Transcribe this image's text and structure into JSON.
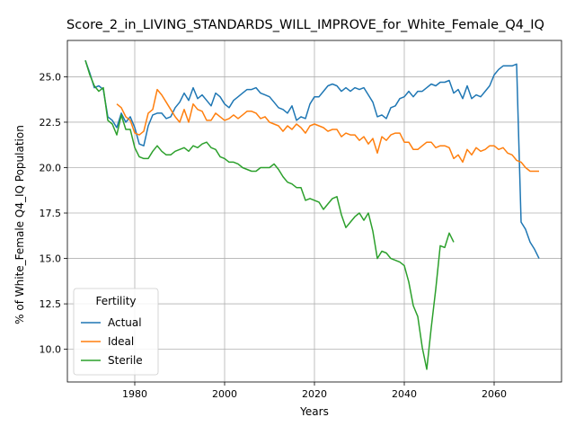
{
  "chart_data": {
    "type": "line",
    "title": "Score_2_in_LIVING_STANDARDS_WILL_IMPROVE_for_White_Female_Q4_IQ",
    "xlabel": "Years",
    "ylabel": "% of White_Female Q4_IQ Population",
    "xlim": [
      1965,
      2075
    ],
    "ylim": [
      8.2,
      27.0
    ],
    "xticks": [
      1980,
      2000,
      2020,
      2040,
      2060
    ],
    "yticks": [
      10.0,
      12.5,
      15.0,
      17.5,
      20.0,
      22.5,
      25.0
    ],
    "xtick_labels": [
      "1980",
      "2000",
      "2020",
      "2040",
      "2060"
    ],
    "ytick_labels": [
      "10.0",
      "12.5",
      "15.0",
      "17.5",
      "20.0",
      "22.5",
      "25.0"
    ],
    "grid": true,
    "legend": {
      "title": "Fertility",
      "position": "lower-left"
    },
    "series": [
      {
        "name": "Actual",
        "color": "#1f77b4",
        "points": [
          [
            1969,
            25.9
          ],
          [
            1970,
            25.2
          ],
          [
            1971,
            24.4
          ],
          [
            1972,
            24.5
          ],
          [
            1973,
            24.3
          ],
          [
            1974,
            22.8
          ],
          [
            1975,
            22.6
          ],
          [
            1976,
            22.2
          ],
          [
            1977,
            23.0
          ],
          [
            1978,
            22.5
          ],
          [
            1979,
            22.8
          ],
          [
            1980,
            22.2
          ],
          [
            1981,
            21.3
          ],
          [
            1982,
            21.2
          ],
          [
            1983,
            22.3
          ],
          [
            1984,
            22.9
          ],
          [
            1985,
            23.0
          ],
          [
            1986,
            23.0
          ],
          [
            1987,
            22.7
          ],
          [
            1988,
            22.8
          ],
          [
            1989,
            23.3
          ],
          [
            1990,
            23.6
          ],
          [
            1991,
            24.1
          ],
          [
            1992,
            23.7
          ],
          [
            1993,
            24.4
          ],
          [
            1994,
            23.8
          ],
          [
            1995,
            24.0
          ],
          [
            1996,
            23.7
          ],
          [
            1997,
            23.4
          ],
          [
            1998,
            24.1
          ],
          [
            1999,
            23.9
          ],
          [
            2000,
            23.5
          ],
          [
            2001,
            23.3
          ],
          [
            2002,
            23.7
          ],
          [
            2003,
            23.9
          ],
          [
            2004,
            24.1
          ],
          [
            2005,
            24.3
          ],
          [
            2006,
            24.3
          ],
          [
            2007,
            24.4
          ],
          [
            2008,
            24.1
          ],
          [
            2009,
            24.0
          ],
          [
            2010,
            23.9
          ],
          [
            2011,
            23.6
          ],
          [
            2012,
            23.3
          ],
          [
            2013,
            23.2
          ],
          [
            2014,
            23.0
          ],
          [
            2015,
            23.4
          ],
          [
            2016,
            22.6
          ],
          [
            2017,
            22.8
          ],
          [
            2018,
            22.7
          ],
          [
            2019,
            23.5
          ],
          [
            2020,
            23.9
          ],
          [
            2021,
            23.9
          ],
          [
            2022,
            24.2
          ],
          [
            2023,
            24.5
          ],
          [
            2024,
            24.6
          ],
          [
            2025,
            24.5
          ],
          [
            2026,
            24.2
          ],
          [
            2027,
            24.4
          ],
          [
            2028,
            24.2
          ],
          [
            2029,
            24.4
          ],
          [
            2030,
            24.3
          ],
          [
            2031,
            24.4
          ],
          [
            2032,
            24.0
          ],
          [
            2033,
            23.6
          ],
          [
            2034,
            22.8
          ],
          [
            2035,
            22.9
          ],
          [
            2036,
            22.7
          ],
          [
            2037,
            23.3
          ],
          [
            2038,
            23.4
          ],
          [
            2039,
            23.8
          ],
          [
            2040,
            23.9
          ],
          [
            2041,
            24.2
          ],
          [
            2042,
            23.9
          ],
          [
            2043,
            24.2
          ],
          [
            2044,
            24.2
          ],
          [
            2045,
            24.4
          ],
          [
            2046,
            24.6
          ],
          [
            2047,
            24.5
          ],
          [
            2048,
            24.7
          ],
          [
            2049,
            24.7
          ],
          [
            2050,
            24.8
          ],
          [
            2051,
            24.1
          ],
          [
            2052,
            24.3
          ],
          [
            2053,
            23.8
          ],
          [
            2054,
            24.5
          ],
          [
            2055,
            23.8
          ],
          [
            2056,
            24.0
          ],
          [
            2057,
            23.9
          ],
          [
            2058,
            24.2
          ],
          [
            2059,
            24.5
          ],
          [
            2060,
            25.1
          ],
          [
            2061,
            25.4
          ],
          [
            2062,
            25.6
          ],
          [
            2063,
            25.6
          ],
          [
            2064,
            25.6
          ],
          [
            2065,
            25.7
          ],
          [
            2066,
            17.0
          ],
          [
            2067,
            16.6
          ],
          [
            2068,
            15.9
          ],
          [
            2069,
            15.5
          ],
          [
            2070,
            15.0
          ]
        ]
      },
      {
        "name": "Ideal",
        "color": "#ff7f0e",
        "points": [
          [
            1976,
            23.5
          ],
          [
            1977,
            23.3
          ],
          [
            1978,
            22.8
          ],
          [
            1979,
            22.6
          ],
          [
            1980,
            21.9
          ],
          [
            1981,
            21.8
          ],
          [
            1982,
            22.0
          ],
          [
            1983,
            23.0
          ],
          [
            1984,
            23.2
          ],
          [
            1985,
            24.3
          ],
          [
            1986,
            24.0
          ],
          [
            1987,
            23.6
          ],
          [
            1988,
            23.2
          ],
          [
            1989,
            22.8
          ],
          [
            1990,
            22.5
          ],
          [
            1991,
            23.2
          ],
          [
            1992,
            22.5
          ],
          [
            1993,
            23.5
          ],
          [
            1994,
            23.2
          ],
          [
            1995,
            23.1
          ],
          [
            1996,
            22.6
          ],
          [
            1997,
            22.6
          ],
          [
            1998,
            23.0
          ],
          [
            1999,
            22.8
          ],
          [
            2000,
            22.6
          ],
          [
            2001,
            22.7
          ],
          [
            2002,
            22.9
          ],
          [
            2003,
            22.7
          ],
          [
            2004,
            22.9
          ],
          [
            2005,
            23.1
          ],
          [
            2006,
            23.1
          ],
          [
            2007,
            23.0
          ],
          [
            2008,
            22.7
          ],
          [
            2009,
            22.8
          ],
          [
            2010,
            22.5
          ],
          [
            2011,
            22.4
          ],
          [
            2012,
            22.3
          ],
          [
            2013,
            22.0
          ],
          [
            2014,
            22.3
          ],
          [
            2015,
            22.1
          ],
          [
            2016,
            22.4
          ],
          [
            2017,
            22.2
          ],
          [
            2018,
            21.9
          ],
          [
            2019,
            22.3
          ],
          [
            2020,
            22.4
          ],
          [
            2021,
            22.3
          ],
          [
            2022,
            22.2
          ],
          [
            2023,
            22.0
          ],
          [
            2024,
            22.1
          ],
          [
            2025,
            22.1
          ],
          [
            2026,
            21.7
          ],
          [
            2027,
            21.9
          ],
          [
            2028,
            21.8
          ],
          [
            2029,
            21.8
          ],
          [
            2030,
            21.5
          ],
          [
            2031,
            21.7
          ],
          [
            2032,
            21.3
          ],
          [
            2033,
            21.6
          ],
          [
            2034,
            20.8
          ],
          [
            2035,
            21.7
          ],
          [
            2036,
            21.5
          ],
          [
            2037,
            21.8
          ],
          [
            2038,
            21.9
          ],
          [
            2039,
            21.9
          ],
          [
            2040,
            21.4
          ],
          [
            2041,
            21.4
          ],
          [
            2042,
            21.0
          ],
          [
            2043,
            21.0
          ],
          [
            2044,
            21.2
          ],
          [
            2045,
            21.4
          ],
          [
            2046,
            21.4
          ],
          [
            2047,
            21.1
          ],
          [
            2048,
            21.2
          ],
          [
            2049,
            21.2
          ],
          [
            2050,
            21.1
          ],
          [
            2051,
            20.5
          ],
          [
            2052,
            20.7
          ],
          [
            2053,
            20.3
          ],
          [
            2054,
            21.0
          ],
          [
            2055,
            20.7
          ],
          [
            2056,
            21.1
          ],
          [
            2057,
            20.9
          ],
          [
            2058,
            21.0
          ],
          [
            2059,
            21.2
          ],
          [
            2060,
            21.2
          ],
          [
            2061,
            21.0
          ],
          [
            2062,
            21.1
          ],
          [
            2063,
            20.8
          ],
          [
            2064,
            20.7
          ],
          [
            2065,
            20.4
          ],
          [
            2066,
            20.3
          ],
          [
            2067,
            20.0
          ],
          [
            2068,
            19.8
          ],
          [
            2069,
            19.8
          ],
          [
            2070,
            19.8
          ]
        ]
      },
      {
        "name": "Sterile",
        "color": "#2ca02c",
        "points": [
          [
            1969,
            25.9
          ],
          [
            1970,
            25.1
          ],
          [
            1971,
            24.5
          ],
          [
            1972,
            24.2
          ],
          [
            1973,
            24.4
          ],
          [
            1974,
            22.6
          ],
          [
            1975,
            22.4
          ],
          [
            1976,
            21.8
          ],
          [
            1977,
            22.9
          ],
          [
            1978,
            22.1
          ],
          [
            1979,
            22.1
          ],
          [
            1980,
            21.1
          ],
          [
            1981,
            20.6
          ],
          [
            1982,
            20.5
          ],
          [
            1983,
            20.5
          ],
          [
            1984,
            20.9
          ],
          [
            1985,
            21.2
          ],
          [
            1986,
            20.9
          ],
          [
            1987,
            20.7
          ],
          [
            1988,
            20.7
          ],
          [
            1989,
            20.9
          ],
          [
            1990,
            21.0
          ],
          [
            1991,
            21.1
          ],
          [
            1992,
            20.9
          ],
          [
            1993,
            21.2
          ],
          [
            1994,
            21.1
          ],
          [
            1995,
            21.3
          ],
          [
            1996,
            21.4
          ],
          [
            1997,
            21.1
          ],
          [
            1998,
            21.0
          ],
          [
            1999,
            20.6
          ],
          [
            2000,
            20.5
          ],
          [
            2001,
            20.3
          ],
          [
            2002,
            20.3
          ],
          [
            2003,
            20.2
          ],
          [
            2004,
            20.0
          ],
          [
            2005,
            19.9
          ],
          [
            2006,
            19.8
          ],
          [
            2007,
            19.8
          ],
          [
            2008,
            20.0
          ],
          [
            2009,
            20.0
          ],
          [
            2010,
            20.0
          ],
          [
            2011,
            20.2
          ],
          [
            2012,
            19.9
          ],
          [
            2013,
            19.5
          ],
          [
            2014,
            19.2
          ],
          [
            2015,
            19.1
          ],
          [
            2016,
            18.9
          ],
          [
            2017,
            18.9
          ],
          [
            2018,
            18.2
          ],
          [
            2019,
            18.3
          ],
          [
            2020,
            18.2
          ],
          [
            2021,
            18.1
          ],
          [
            2022,
            17.7
          ],
          [
            2023,
            18.0
          ],
          [
            2024,
            18.3
          ],
          [
            2025,
            18.4
          ],
          [
            2026,
            17.4
          ],
          [
            2027,
            16.7
          ],
          [
            2028,
            17.0
          ],
          [
            2029,
            17.3
          ],
          [
            2030,
            17.5
          ],
          [
            2031,
            17.1
          ],
          [
            2032,
            17.5
          ],
          [
            2033,
            16.5
          ],
          [
            2034,
            15.0
          ],
          [
            2035,
            15.4
          ],
          [
            2036,
            15.3
          ],
          [
            2037,
            15.0
          ],
          [
            2038,
            14.9
          ],
          [
            2039,
            14.8
          ],
          [
            2040,
            14.6
          ],
          [
            2041,
            13.7
          ],
          [
            2042,
            12.4
          ],
          [
            2043,
            11.8
          ],
          [
            2044,
            10.1
          ],
          [
            2045,
            8.9
          ],
          [
            2046,
            11.2
          ],
          [
            2047,
            13.3
          ],
          [
            2048,
            15.7
          ],
          [
            2049,
            15.6
          ],
          [
            2050,
            16.4
          ],
          [
            2051,
            15.9
          ]
        ]
      }
    ]
  }
}
